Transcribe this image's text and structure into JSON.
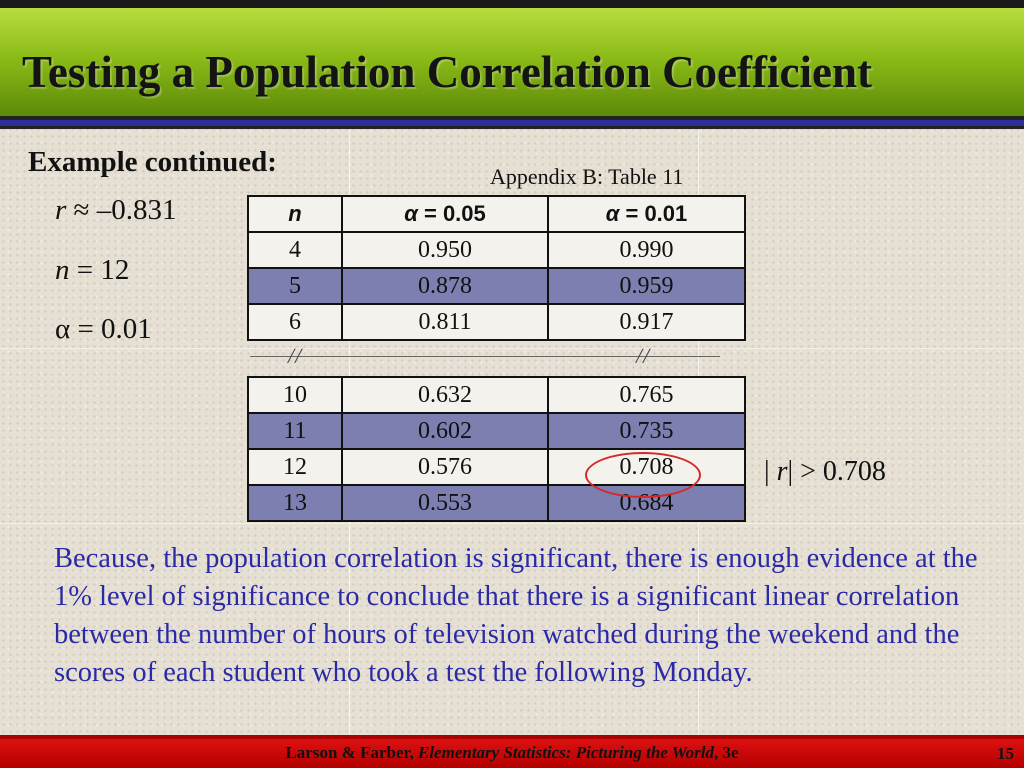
{
  "slide": {
    "title": "Testing a Population Correlation Coefficient",
    "heading": "Example continued:",
    "caption": "Appendix B: Table 11"
  },
  "given": {
    "r_symbol": "r",
    "r_value": " ≈ –0.831",
    "n_symbol": "n",
    "n_value": " = 12",
    "alpha_text": "α = 0.01"
  },
  "table": {
    "headers": {
      "n": "n",
      "alpha05_symbol": "α",
      "alpha05_rest": " = 0.05",
      "alpha01_symbol": "α",
      "alpha01_rest": " = 0.01"
    },
    "rows_top": [
      {
        "n": "4",
        "a05": "0.950",
        "a01": "0.990"
      },
      {
        "n": "5",
        "a05": "0.878",
        "a01": "0.959"
      },
      {
        "n": "6",
        "a05": "0.811",
        "a01": "0.917"
      }
    ],
    "rows_bottom": [
      {
        "n": "10",
        "a05": "0.632",
        "a01": "0.765"
      },
      {
        "n": "11",
        "a05": "0.602",
        "a01": "0.735"
      },
      {
        "n": "12",
        "a05": "0.576",
        "a01": "0.708"
      },
      {
        "n": "13",
        "a05": "0.553",
        "a01": "0.684"
      }
    ],
    "break_mark": "//"
  },
  "comparison": {
    "left_bar": "| ",
    "r_symbol": "r",
    "right": "| > 0.708"
  },
  "conclusion": "Because, the population correlation is significant, there is enough evidence at the 1% level of significance to conclude that there is a significant linear correlation between the number of hours of television watched during the weekend and the scores of each student who took a test the following Monday.",
  "footer": {
    "authors": "Larson & Farber, ",
    "book": "Elementary Statistics: Picturing the World",
    "edition": ", 3e",
    "page_number": "15"
  },
  "colors": {
    "title_bar": "#8cbc18",
    "highlight_row": "#7c7fb0",
    "circle": "#d62828",
    "conclusion_text": "#2a2aa6",
    "footer_bar": "#b30000"
  }
}
